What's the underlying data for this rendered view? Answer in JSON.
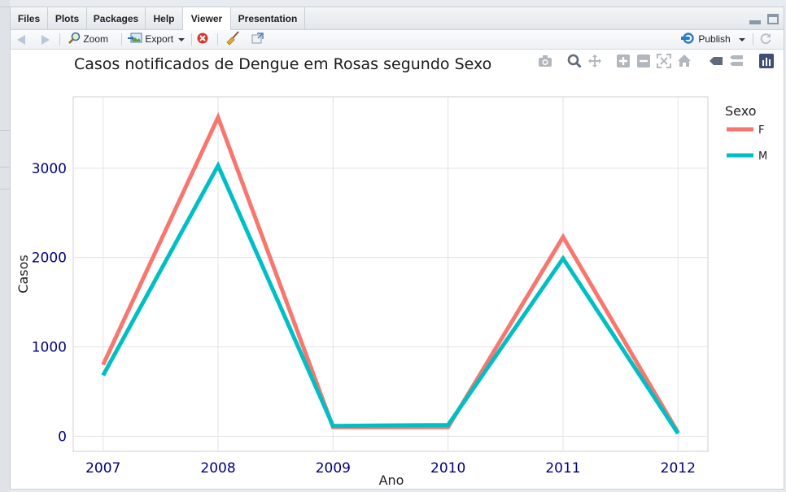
{
  "tabs": [
    {
      "label": "Files",
      "active": false
    },
    {
      "label": "Plots",
      "active": false
    },
    {
      "label": "Packages",
      "active": false
    },
    {
      "label": "Help",
      "active": false
    },
    {
      "label": "Viewer",
      "active": true
    },
    {
      "label": "Presentation",
      "active": false
    }
  ],
  "toolbar": {
    "zoom_label": "Zoom",
    "export_label": "Export",
    "publish_label": "Publish"
  },
  "icons": {
    "back": "back-arrow-icon",
    "forward": "forward-arrow-icon",
    "zoom": "magnifier-icon",
    "export": "export-image-icon",
    "remove": "remove-icon",
    "clear": "broom-icon",
    "popout": "popout-icon",
    "publish": "publish-icon",
    "refresh": "refresh-icon"
  },
  "chart_data": {
    "type": "line",
    "title": "Casos notificados de Dengue em Rosas segundo Sexo",
    "xlabel": "Ano",
    "ylabel": "Casos",
    "legend_title": "Sexo",
    "legend_position": "top-right",
    "x": [
      2007,
      2008,
      2009,
      2010,
      2011,
      2012
    ],
    "series": [
      {
        "name": "F",
        "color": "#F8766D",
        "values": [
          800,
          3570,
          100,
          100,
          2230,
          40
        ]
      },
      {
        "name": "M",
        "color": "#00BFC4",
        "values": [
          680,
          3030,
          115,
          125,
          1990,
          30
        ]
      }
    ],
    "yticks": [
      0,
      1000,
      2000,
      3000
    ],
    "ylim": [
      -170,
      3800
    ],
    "xlim": [
      2006.74,
      2012.26
    ],
    "grid": true,
    "tick_color": "#000080"
  }
}
